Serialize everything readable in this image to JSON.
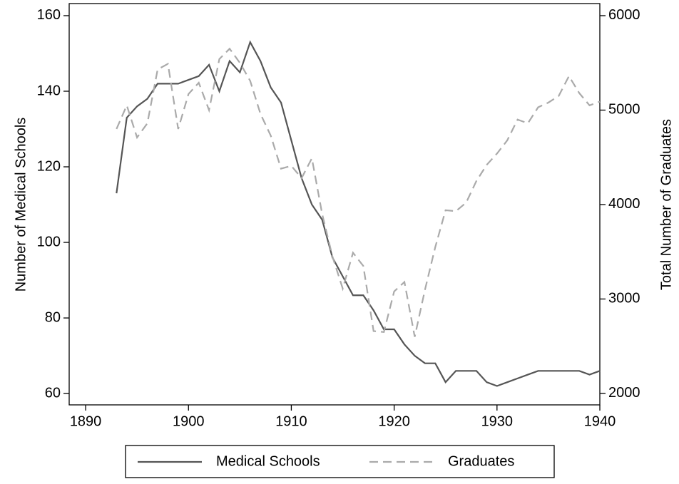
{
  "chart_data": {
    "type": "line",
    "x": [
      1893,
      1894,
      1895,
      1896,
      1897,
      1898,
      1899,
      1900,
      1901,
      1902,
      1903,
      1904,
      1905,
      1906,
      1907,
      1908,
      1909,
      1910,
      1911,
      1912,
      1913,
      1914,
      1915,
      1916,
      1917,
      1918,
      1919,
      1920,
      1921,
      1922,
      1923,
      1924,
      1925,
      1926,
      1927,
      1928,
      1929,
      1930,
      1931,
      1932,
      1933,
      1934,
      1935,
      1936,
      1937,
      1938,
      1939,
      1940
    ],
    "series": [
      {
        "name": "Medical Schools",
        "color": "#555555",
        "dash": false,
        "axis": "y",
        "values": [
          113,
          133,
          136,
          138,
          142,
          142,
          142,
          143,
          144,
          147,
          140,
          148,
          145,
          153,
          148,
          141,
          137,
          127,
          117,
          110,
          106,
          96,
          91,
          86,
          86,
          82,
          77,
          77,
          73,
          70,
          68,
          68,
          63,
          66,
          66,
          66,
          63,
          62,
          63,
          64,
          65,
          66,
          66,
          66,
          66,
          66,
          65,
          66
        ]
      },
      {
        "name": "Graduates",
        "color": "#aaaaaa",
        "dash": true,
        "axis": "y2",
        "values": [
          4800,
          5050,
          4710,
          4860,
          5430,
          5490,
          4800,
          5170,
          5290,
          5000,
          5540,
          5650,
          5500,
          5310,
          4960,
          4730,
          4380,
          4410,
          4280,
          4490,
          3900,
          3450,
          3110,
          3490,
          3350,
          2660,
          2650,
          3080,
          3180,
          2600,
          3100,
          3550,
          3940,
          3930,
          4020,
          4250,
          4420,
          4540,
          4680,
          4900,
          4860,
          5030,
          5080,
          5150,
          5360,
          5180,
          5050,
          5090
        ]
      }
    ],
    "xlim": [
      1888.4,
      1940
    ],
    "xticks": [
      1890,
      1900,
      1910,
      1920,
      1930,
      1940
    ],
    "ylim": [
      57,
      163.2
    ],
    "yticks": [
      60,
      80,
      100,
      120,
      140,
      160
    ],
    "y2lim": [
      1879,
      6128
    ],
    "y2ticks": [
      2000,
      3000,
      4000,
      5000,
      6000
    ],
    "ylabel": "Number of Medical Schools",
    "y2label": "Total Number of Graduates",
    "legend": "bottom"
  }
}
